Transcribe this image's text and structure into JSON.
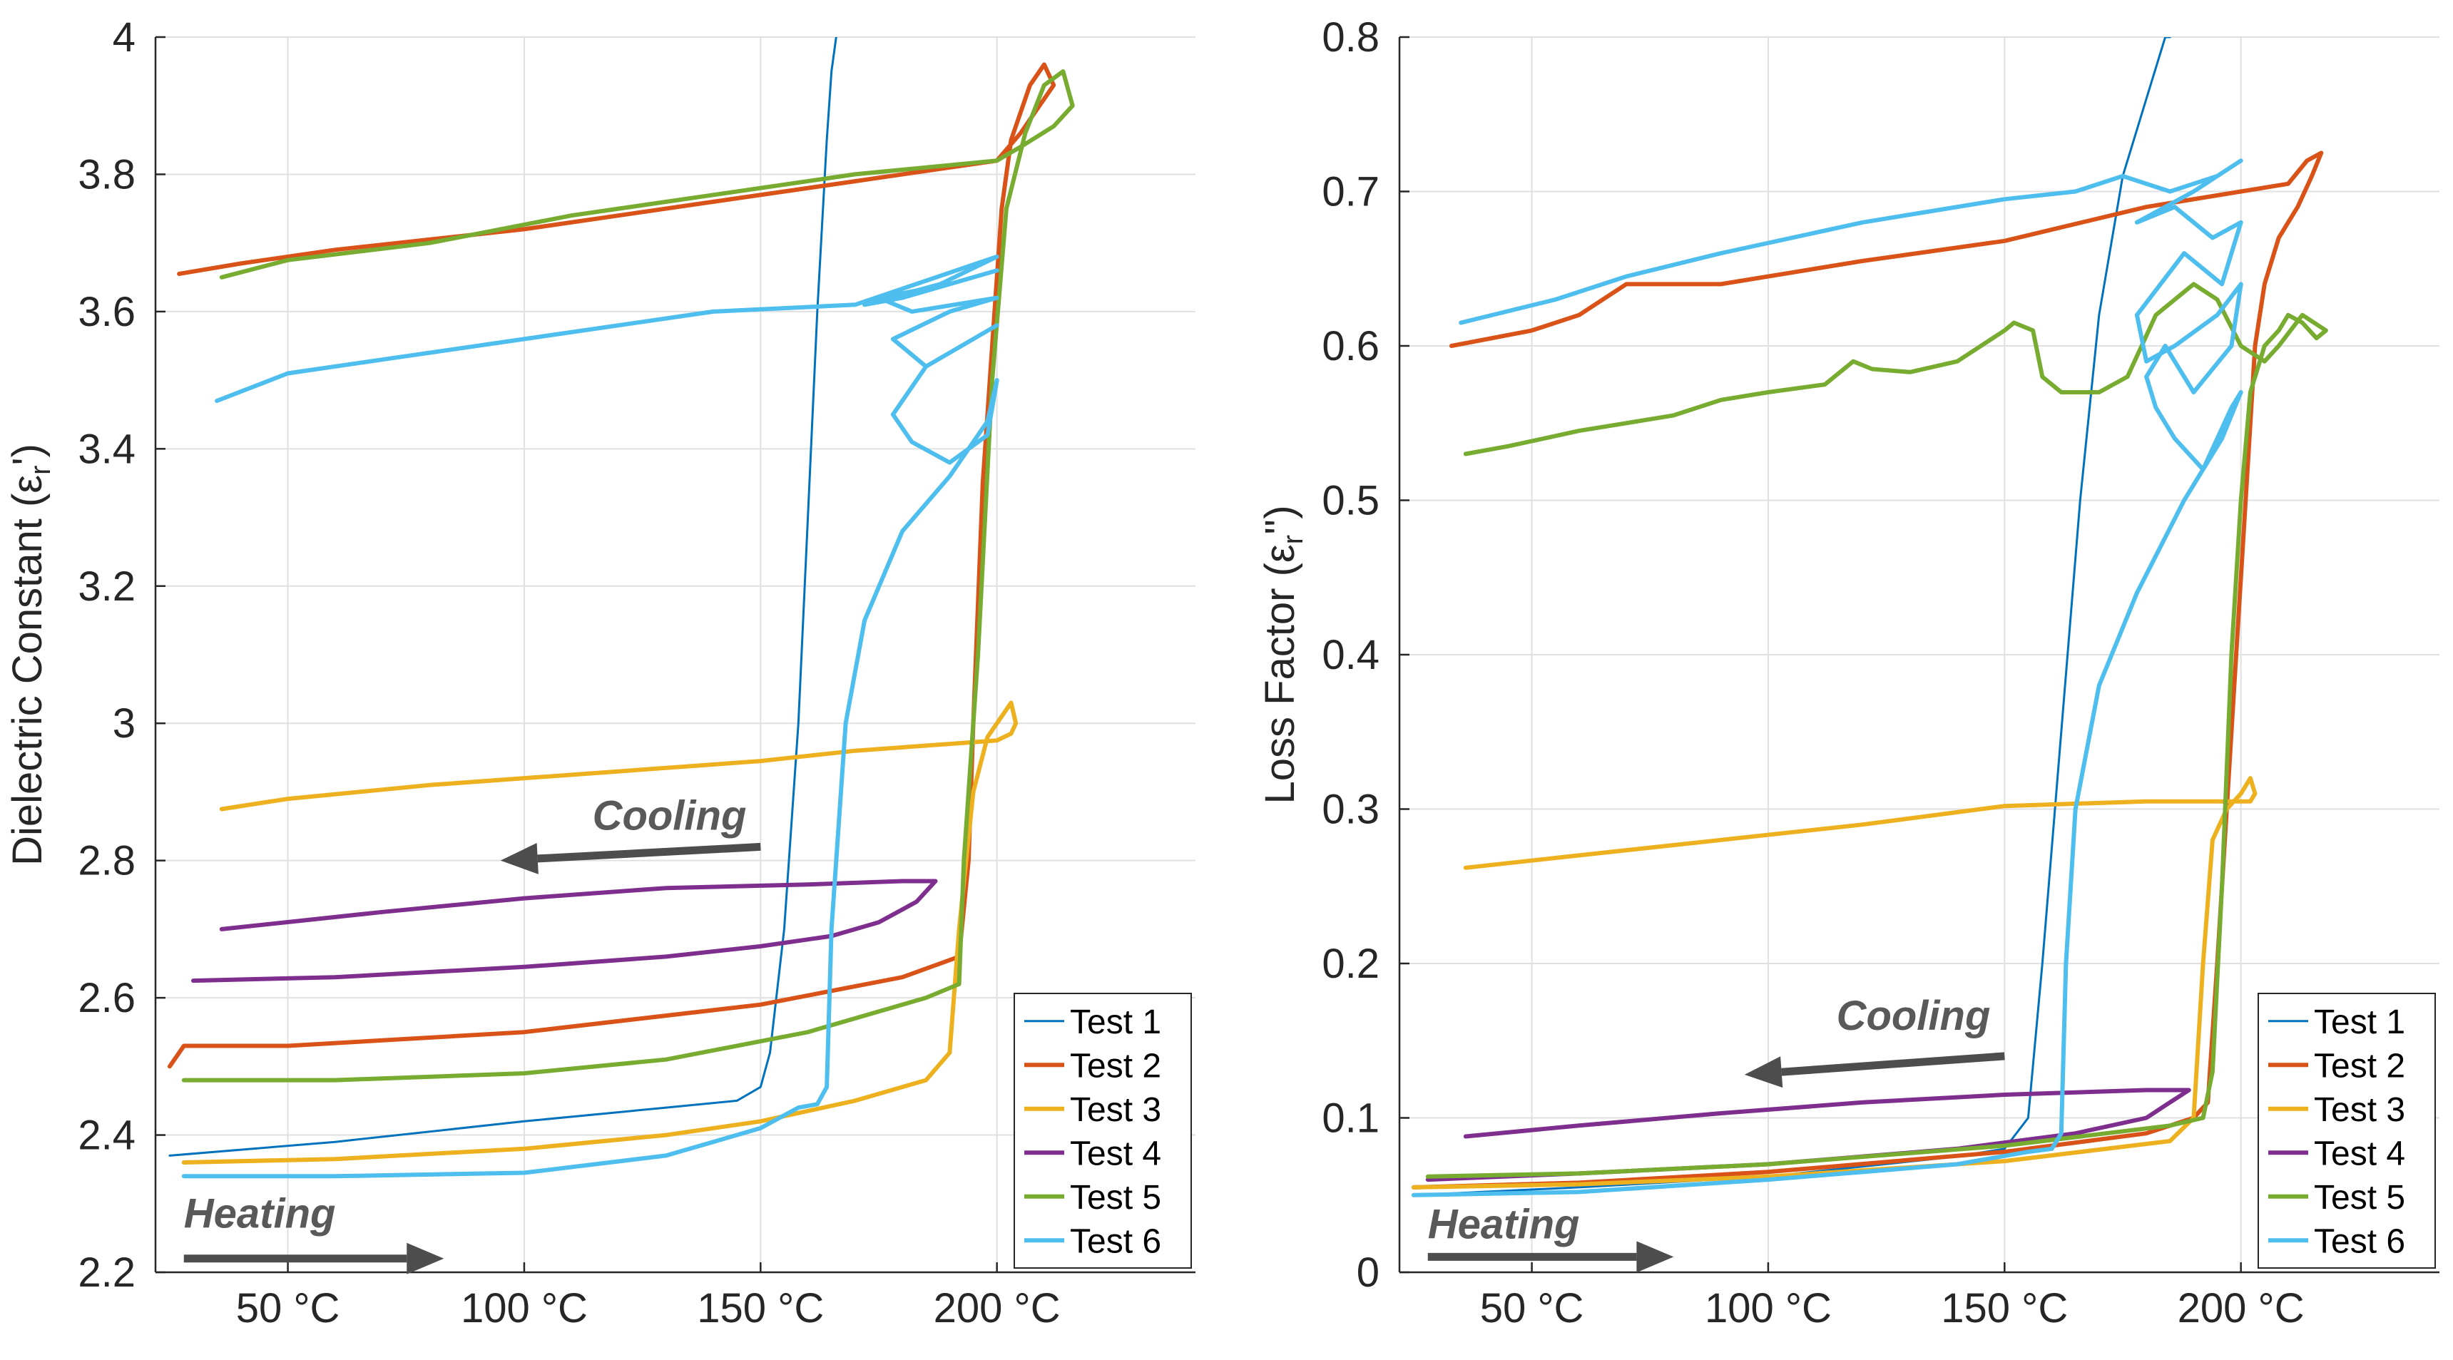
{
  "colors": {
    "test1": "#0072BD",
    "test2": "#D95319",
    "test3": "#EDB120",
    "test4": "#7E2F8E",
    "test5": "#77AC30",
    "test6": "#4DBEEE",
    "arrow": "#4d4d4d",
    "grid": "#e0e0e0",
    "axis": "#262626"
  },
  "chart_data": [
    {
      "type": "line",
      "ylabel": "Dielectric Constant (εr′)",
      "ylabel_symbol": "ε",
      "ylabel_sub": "r",
      "ylabel_prime": "'",
      "xlim": [
        22,
        242
      ],
      "ylim": [
        2.2,
        4.0
      ],
      "xticks": [
        50,
        100,
        150,
        200
      ],
      "xtick_labels": [
        "50 °C",
        "100 °C",
        "150 °C",
        "200 °C"
      ],
      "yticks": [
        2.2,
        2.4,
        2.6,
        2.8,
        3.0,
        3.2,
        3.4,
        3.6,
        3.8,
        4.0
      ],
      "ytick_labels": [
        "2.2",
        "2.4",
        "2.6",
        "2.8",
        "3",
        "3.2",
        "3.4",
        "3.6",
        "3.8",
        "4"
      ],
      "grid": true,
      "legend_position": "bottom-right",
      "annotations": [
        {
          "text": "Cooling",
          "x": 147,
          "y": 2.845,
          "arrow_from": [
            150,
            2.82
          ],
          "arrow_to": [
            95,
            2.8
          ]
        },
        {
          "text": "Heating",
          "x": 28,
          "y": 2.265,
          "arrow_from": [
            28,
            2.22
          ],
          "arrow_to": [
            83,
            2.22
          ]
        }
      ],
      "series": [
        {
          "name": "Test 1",
          "key": "test1",
          "x": [
            25,
            60,
            100,
            130,
            145,
            150,
            152,
            155,
            158,
            160,
            162,
            164,
            165,
            166
          ],
          "y": [
            2.37,
            2.39,
            2.42,
            2.44,
            2.45,
            2.47,
            2.52,
            2.7,
            3.0,
            3.3,
            3.6,
            3.85,
            3.95,
            4.0
          ]
        },
        {
          "name": "Test 2",
          "key": "test2",
          "x": [
            25,
            28,
            50,
            100,
            150,
            180,
            192,
            194,
            195,
            197,
            199,
            201,
            203,
            207,
            210,
            212,
            205,
            200,
            170,
            140,
            100,
            60,
            40,
            27
          ],
          "y": [
            2.5,
            2.53,
            2.53,
            2.55,
            2.59,
            2.63,
            2.66,
            2.8,
            3.0,
            3.35,
            3.55,
            3.75,
            3.85,
            3.93,
            3.96,
            3.93,
            3.86,
            3.82,
            3.79,
            3.76,
            3.72,
            3.69,
            3.67,
            3.655
          ]
        },
        {
          "name": "Test 3",
          "key": "test3",
          "x": [
            28,
            60,
            100,
            130,
            150,
            170,
            185,
            190,
            192,
            195,
            198,
            200,
            203,
            204,
            203,
            200,
            190,
            170,
            150,
            120,
            80,
            50,
            36
          ],
          "y": [
            2.36,
            2.365,
            2.38,
            2.4,
            2.42,
            2.45,
            2.48,
            2.52,
            2.7,
            2.9,
            2.98,
            3.0,
            3.03,
            3.0,
            2.985,
            2.975,
            2.97,
            2.96,
            2.945,
            2.93,
            2.91,
            2.89,
            2.875
          ]
        },
        {
          "name": "Test 4",
          "key": "test4",
          "x": [
            30,
            60,
            100,
            130,
            150,
            165,
            175,
            183,
            187,
            180,
            160,
            130,
            100,
            70,
            36
          ],
          "y": [
            2.625,
            2.63,
            2.645,
            2.66,
            2.675,
            2.69,
            2.71,
            2.74,
            2.77,
            2.77,
            2.765,
            2.76,
            2.745,
            2.725,
            2.7
          ]
        },
        {
          "name": "Test 5",
          "key": "test5",
          "x": [
            28,
            60,
            100,
            130,
            160,
            185,
            192,
            193,
            196,
            199,
            202,
            206,
            210,
            214,
            216,
            212,
            205,
            200,
            170,
            140,
            110,
            80,
            50,
            36
          ],
          "y": [
            2.48,
            2.48,
            2.49,
            2.51,
            2.55,
            2.6,
            2.62,
            2.8,
            3.1,
            3.5,
            3.75,
            3.86,
            3.93,
            3.95,
            3.9,
            3.87,
            3.84,
            3.82,
            3.8,
            3.77,
            3.74,
            3.7,
            3.675,
            3.65
          ]
        },
        {
          "name": "Test 6",
          "key": "test6",
          "x": [
            28,
            60,
            100,
            130,
            150,
            158,
            162,
            164,
            165,
            168,
            172,
            180,
            190,
            198,
            200,
            198,
            190,
            182,
            178,
            185,
            200,
            185,
            178,
            190,
            200,
            182,
            175,
            190,
            200,
            180,
            172,
            188,
            200,
            170,
            140,
            100,
            70,
            50,
            35
          ],
          "y": [
            2.34,
            2.34,
            2.345,
            2.37,
            2.41,
            2.44,
            2.445,
            2.47,
            2.7,
            3.0,
            3.15,
            3.28,
            3.36,
            3.44,
            3.5,
            3.42,
            3.38,
            3.41,
            3.45,
            3.52,
            3.58,
            3.52,
            3.56,
            3.6,
            3.62,
            3.6,
            3.62,
            3.64,
            3.66,
            3.62,
            3.61,
            3.64,
            3.68,
            3.61,
            3.6,
            3.56,
            3.53,
            3.51,
            3.47
          ]
        }
      ]
    },
    {
      "type": "line",
      "ylabel": "Loss Factor (εr″)",
      "ylabel_symbol": "ε",
      "ylabel_sub": "r",
      "ylabel_prime": "''",
      "xlim": [
        22,
        242
      ],
      "ylim": [
        0,
        0.8
      ],
      "xticks": [
        50,
        100,
        150,
        200
      ],
      "xtick_labels": [
        "50 °C",
        "100 °C",
        "150 °C",
        "200 °C"
      ],
      "yticks": [
        0,
        0.1,
        0.2,
        0.3,
        0.4,
        0.5,
        0.6,
        0.7,
        0.8
      ],
      "ytick_labels": [
        "0",
        "0.1",
        "0.2",
        "0.3",
        "0.4",
        "0.5",
        "0.6",
        "0.7",
        "0.8"
      ],
      "grid": true,
      "legend_position": "bottom-right",
      "annotations": [
        {
          "text": "Cooling",
          "x": 147,
          "y": 0.157,
          "arrow_from": [
            150,
            0.14
          ],
          "arrow_to": [
            95,
            0.128
          ]
        },
        {
          "text": "Heating",
          "x": 28,
          "y": 0.022,
          "arrow_from": [
            28,
            0.01
          ],
          "arrow_to": [
            80,
            0.01
          ]
        }
      ],
      "series": [
        {
          "name": "Test 1",
          "key": "test1",
          "x": [
            25,
            60,
            100,
            140,
            150,
            155,
            158,
            162,
            166,
            170,
            175,
            180,
            184,
            185
          ],
          "y": [
            0.05,
            0.055,
            0.062,
            0.075,
            0.08,
            0.1,
            0.2,
            0.35,
            0.5,
            0.62,
            0.71,
            0.76,
            0.8,
            0.8
          ]
        },
        {
          "name": "Test 2",
          "key": "test2",
          "x": [
            25,
            60,
            100,
            150,
            180,
            190,
            193,
            195,
            197,
            199,
            201,
            203,
            205,
            208,
            212,
            215,
            217,
            214,
            210,
            200,
            180,
            150,
            120,
            90,
            70,
            60,
            50,
            33
          ],
          "y": [
            0.055,
            0.058,
            0.065,
            0.078,
            0.09,
            0.1,
            0.11,
            0.2,
            0.3,
            0.4,
            0.5,
            0.6,
            0.64,
            0.67,
            0.69,
            0.71,
            0.725,
            0.72,
            0.705,
            0.7,
            0.69,
            0.668,
            0.655,
            0.64,
            0.64,
            0.62,
            0.61,
            0.6
          ]
        },
        {
          "name": "Test 3",
          "key": "test3",
          "x": [
            25,
            60,
            100,
            150,
            185,
            190,
            192,
            194,
            197,
            200,
            202,
            203,
            202,
            200,
            180,
            150,
            120,
            90,
            60,
            36
          ],
          "y": [
            0.055,
            0.057,
            0.062,
            0.072,
            0.085,
            0.1,
            0.2,
            0.28,
            0.3,
            0.31,
            0.32,
            0.31,
            0.305,
            0.305,
            0.305,
            0.302,
            0.29,
            0.28,
            0.27,
            0.262
          ]
        },
        {
          "name": "Test 4",
          "key": "test4",
          "x": [
            28,
            60,
            100,
            140,
            165,
            180,
            185,
            189,
            180,
            150,
            120,
            90,
            60,
            36
          ],
          "y": [
            0.06,
            0.064,
            0.07,
            0.08,
            0.09,
            0.1,
            0.11,
            0.118,
            0.118,
            0.115,
            0.11,
            0.103,
            0.095,
            0.088
          ]
        },
        {
          "name": "Test 5",
          "key": "test5",
          "x": [
            28,
            60,
            100,
            150,
            185,
            192,
            194,
            196,
            198,
            200,
            202,
            205,
            208,
            210,
            213,
            216,
            218,
            213,
            208,
            205,
            200,
            195,
            190,
            182,
            176,
            170,
            162,
            158,
            156,
            152,
            150,
            145,
            140,
            130,
            122,
            118,
            112,
            100,
            90,
            80,
            70,
            60,
            45,
            36
          ],
          "y": [
            0.062,
            0.064,
            0.07,
            0.082,
            0.095,
            0.1,
            0.13,
            0.25,
            0.4,
            0.5,
            0.57,
            0.6,
            0.61,
            0.62,
            0.615,
            0.605,
            0.61,
            0.62,
            0.6,
            0.59,
            0.6,
            0.63,
            0.64,
            0.62,
            0.58,
            0.57,
            0.57,
            0.58,
            0.61,
            0.615,
            0.61,
            0.6,
            0.59,
            0.583,
            0.585,
            0.59,
            0.575,
            0.57,
            0.565,
            0.555,
            0.55,
            0.545,
            0.535,
            0.53
          ]
        },
        {
          "name": "Test 6",
          "key": "test6",
          "x": [
            25,
            60,
            100,
            140,
            155,
            160,
            162,
            163,
            165,
            170,
            178,
            188,
            196,
            200,
            198,
            192,
            186,
            182,
            180,
            184,
            190,
            198,
            200,
            195,
            186,
            180,
            178,
            188,
            196,
            200,
            194,
            186,
            178,
            190,
            200,
            195,
            185,
            175,
            165,
            150,
            120,
            90,
            70,
            55,
            35
          ],
          "y": [
            0.05,
            0.052,
            0.06,
            0.07,
            0.078,
            0.08,
            0.09,
            0.2,
            0.3,
            0.38,
            0.44,
            0.5,
            0.54,
            0.57,
            0.56,
            0.52,
            0.54,
            0.56,
            0.58,
            0.6,
            0.57,
            0.6,
            0.64,
            0.62,
            0.6,
            0.59,
            0.62,
            0.66,
            0.64,
            0.68,
            0.67,
            0.69,
            0.68,
            0.7,
            0.72,
            0.71,
            0.7,
            0.71,
            0.7,
            0.695,
            0.68,
            0.66,
            0.645,
            0.63,
            0.615
          ]
        }
      ]
    }
  ]
}
